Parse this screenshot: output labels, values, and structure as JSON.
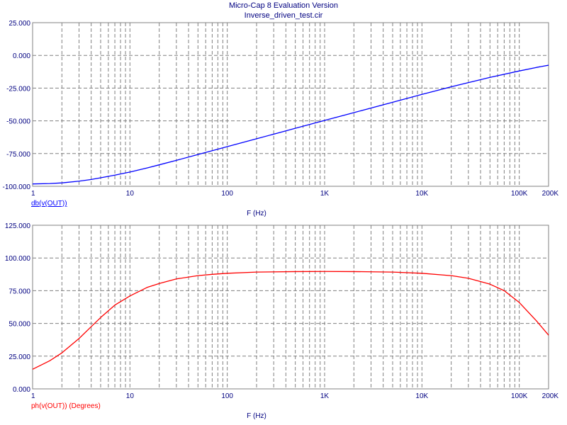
{
  "window": {
    "title": "Micro-Cap 8 Evaluation Version",
    "subtitle": "Inverse_driven_test.cir"
  },
  "colors": {
    "axis_text": "#000080",
    "grid": "#808080",
    "series_mag": "#0000ff",
    "series_phase": "#ff0000",
    "background": "#ffffff"
  },
  "chart_data": [
    {
      "type": "line",
      "x_scale": "log",
      "xlim": [
        1,
        200000
      ],
      "ylim": [
        -100,
        25
      ],
      "xlabel": "F (Hz)",
      "ylabel": "db(v(OUT))",
      "x_ticks": [
        {
          "value": 1,
          "label": "1"
        },
        {
          "value": 10,
          "label": "10"
        },
        {
          "value": 100,
          "label": "100"
        },
        {
          "value": 1000,
          "label": "1K"
        },
        {
          "value": 10000,
          "label": "10K"
        },
        {
          "value": 100000,
          "label": "100K"
        },
        {
          "value": 200000,
          "label": "200K"
        }
      ],
      "y_ticks": [
        {
          "value": 25,
          "label": "25.000"
        },
        {
          "value": 0,
          "label": "0.000"
        },
        {
          "value": -25,
          "label": "-25.000"
        },
        {
          "value": -50,
          "label": "-50.000"
        },
        {
          "value": -75,
          "label": "-75.000"
        },
        {
          "value": -100,
          "label": "-100.000"
        }
      ],
      "grid": true,
      "series": [
        {
          "name": "db(v(OUT))",
          "color": "#0000ff",
          "x": [
            1,
            1.5,
            2,
            3,
            4,
            5,
            7,
            10,
            15,
            20,
            30,
            50,
            70,
            100,
            200,
            500,
            1000,
            2000,
            5000,
            10000,
            20000,
            50000,
            100000,
            150000,
            200000
          ],
          "y": [
            -98.2,
            -97.9,
            -97.4,
            -96.1,
            -94.8,
            -93.5,
            -91.5,
            -89.1,
            -86.0,
            -83.6,
            -80.2,
            -75.7,
            -72.8,
            -69.7,
            -63.7,
            -55.7,
            -49.7,
            -43.7,
            -35.8,
            -29.8,
            -24.0,
            -16.8,
            -11.9,
            -9.2,
            -7.5
          ]
        }
      ]
    },
    {
      "type": "line",
      "x_scale": "log",
      "xlim": [
        1,
        200000
      ],
      "ylim": [
        0,
        125
      ],
      "xlabel": "F (Hz)",
      "ylabel": "ph(v(OUT)) (Degrees)",
      "x_ticks": [
        {
          "value": 1,
          "label": "1"
        },
        {
          "value": 10,
          "label": "10"
        },
        {
          "value": 100,
          "label": "100"
        },
        {
          "value": 1000,
          "label": "1K"
        },
        {
          "value": 10000,
          "label": "10K"
        },
        {
          "value": 100000,
          "label": "100K"
        },
        {
          "value": 200000,
          "label": "200K"
        }
      ],
      "y_ticks": [
        {
          "value": 125,
          "label": "125.000"
        },
        {
          "value": 100,
          "label": "100.000"
        },
        {
          "value": 75,
          "label": "75.000"
        },
        {
          "value": 50,
          "label": "50.000"
        },
        {
          "value": 25,
          "label": "25.000"
        },
        {
          "value": 0,
          "label": "0.000"
        }
      ],
      "grid": true,
      "series": [
        {
          "name": "ph(v(OUT)) (Degrees)",
          "color": "#ff0000",
          "x": [
            1,
            1.5,
            2,
            3,
            4,
            5,
            7,
            10,
            15,
            20,
            30,
            50,
            70,
            100,
            200,
            500,
            1000,
            2000,
            5000,
            10000,
            20000,
            30000,
            50000,
            70000,
            100000,
            150000,
            200000
          ],
          "y": [
            15.0,
            21.5,
            27.5,
            38.5,
            47.5,
            54.5,
            64.0,
            71.0,
            77.5,
            80.5,
            84.0,
            86.5,
            87.5,
            88.3,
            89.2,
            89.6,
            89.7,
            89.6,
            89.2,
            88.3,
            86.5,
            84.5,
            80.0,
            75.0,
            66.0,
            52.0,
            41.0
          ]
        }
      ]
    }
  ]
}
